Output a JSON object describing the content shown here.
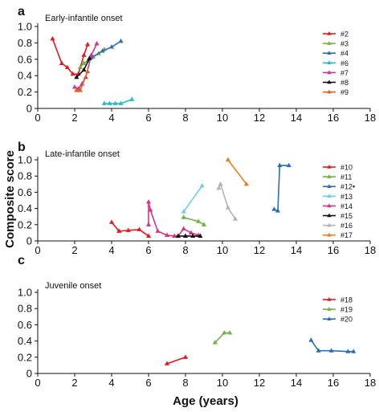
{
  "chart_data": {
    "type": "line",
    "xlabel": "Age (years)",
    "ylabel": "Composite score",
    "xlim": [
      0,
      18
    ],
    "ylim": [
      0,
      1.0
    ],
    "x_ticks": [
      "0",
      "2",
      "4",
      "6",
      "8",
      "10",
      "12",
      "14",
      "16",
      "18"
    ],
    "y_ticks": [
      "0",
      "0.2",
      "0.4",
      "0.6",
      "0.8",
      "1.0"
    ],
    "marker": "triangle",
    "grid": false,
    "legend_position": "right",
    "panels": [
      {
        "letter": "a",
        "title": "Early-infantile onset",
        "series": [
          {
            "name": "#2",
            "color": "#e41a1c",
            "x": [
              0.8,
              1.3,
              1.6,
              1.9,
              2.2,
              2.5,
              2.7
            ],
            "y": [
              0.85,
              0.55,
              0.5,
              0.42,
              0.42,
              0.65,
              0.78
            ]
          },
          {
            "name": "#3",
            "color": "#6db33f",
            "x": [
              2.3,
              2.5,
              2.7,
              3.0,
              3.3,
              3.6
            ],
            "y": [
              0.5,
              0.55,
              0.58,
              0.63,
              0.67,
              0.72
            ]
          },
          {
            "name": "#4",
            "color": "#2e6db4",
            "x": [
              2.9,
              3.5,
              4.0,
              4.5
            ],
            "y": [
              0.62,
              0.7,
              0.75,
              0.82
            ]
          },
          {
            "name": "#6",
            "color": "#22bcc4",
            "x": [
              3.6,
              3.9,
              4.2,
              4.5,
              5.1
            ],
            "y": [
              0.06,
              0.06,
              0.06,
              0.06,
              0.11
            ]
          },
          {
            "name": "#7",
            "color": "#d6338a",
            "x": [
              2.0,
              2.2,
              2.4,
              2.6,
              2.9,
              3.2
            ],
            "y": [
              0.26,
              0.24,
              0.3,
              0.38,
              0.65,
              0.79
            ]
          },
          {
            "name": "#8",
            "color": "#111111",
            "x": [
              2.1,
              2.5,
              2.8
            ],
            "y": [
              0.38,
              0.47,
              0.61
            ]
          },
          {
            "name": "#9",
            "color": "#e06020",
            "x": [
              2.1,
              2.3,
              2.7
            ],
            "y": [
              0.22,
              0.22,
              0.45
            ]
          }
        ]
      },
      {
        "letter": "b",
        "title": "Late-infantile onset",
        "series": [
          {
            "name": "#10",
            "color": "#e41a1c",
            "x": [
              4.0,
              4.4,
              4.9,
              5.5,
              6.0
            ],
            "y": [
              0.23,
              0.12,
              0.13,
              0.14,
              0.06
            ]
          },
          {
            "name": "#11",
            "color": "#6db33f",
            "x": [
              7.9,
              8.7,
              9.0
            ],
            "y": [
              0.29,
              0.24,
              0.2
            ]
          },
          {
            "name": "#12•",
            "color": "#2e6db4",
            "x": [
              12.8,
              13.0,
              13.1,
              13.6
            ],
            "y": [
              0.39,
              0.37,
              0.93,
              0.93
            ]
          },
          {
            "name": "#13",
            "color": "#6ecce8",
            "x": [
              7.9,
              8.9
            ],
            "y": [
              0.36,
              0.68
            ]
          },
          {
            "name": "#14",
            "color": "#d6338a",
            "x": [
              6.0,
              6.0,
              6.1,
              6.5,
              7.0,
              7.4,
              7.6,
              7.9,
              8.3,
              8.7
            ],
            "y": [
              0.2,
              0.48,
              0.38,
              0.12,
              0.07,
              0.06,
              0.06,
              0.15,
              0.1,
              0.07
            ]
          },
          {
            "name": "#15",
            "color": "#111111",
            "x": [
              7.6,
              8.0,
              8.4,
              8.8
            ],
            "y": [
              0.06,
              0.06,
              0.06,
              0.06
            ]
          },
          {
            "name": "#16",
            "color": "#b3b3b3",
            "x": [
              9.8,
              9.9,
              10.3,
              10.7
            ],
            "y": [
              0.65,
              0.7,
              0.41,
              0.27
            ]
          },
          {
            "name": "#17",
            "color": "#f07d1f",
            "x": [
              10.3,
              11.3
            ],
            "y": [
              1.0,
              0.7
            ]
          }
        ]
      },
      {
        "letter": "c",
        "title": "Juvenile onset",
        "series": [
          {
            "name": "#18",
            "color": "#e41a1c",
            "x": [
              7.0,
              8.0
            ],
            "y": [
              0.12,
              0.2
            ]
          },
          {
            "name": "#19",
            "color": "#6db33f",
            "x": [
              9.6,
              10.1,
              10.4
            ],
            "y": [
              0.38,
              0.5,
              0.5
            ]
          },
          {
            "name": "#20",
            "color": "#2e6db4",
            "x": [
              14.8,
              15.2,
              15.9,
              16.8,
              17.1
            ],
            "y": [
              0.41,
              0.28,
              0.28,
              0.27,
              0.27
            ]
          }
        ]
      }
    ]
  }
}
